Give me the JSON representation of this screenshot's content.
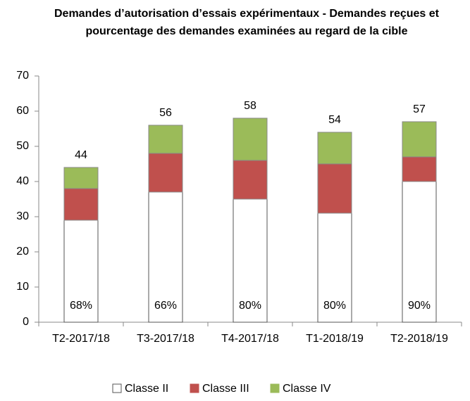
{
  "chart_data": {
    "type": "stacked_bar",
    "title": [
      "Demandes d’autorisation d’essais expérimentaux - Demandes reçues et",
      "pourcentage des demandes examinées au regard de la cible"
    ],
    "categories": [
      "T2-2017/18",
      "T3-2017/18",
      "T4-2017/18",
      "T1-2018/19",
      "T2-2018/19"
    ],
    "series": [
      {
        "name": "Classe II",
        "color": "#ffffff",
        "values": [
          29,
          37,
          35,
          31,
          40
        ]
      },
      {
        "name": "Classe III",
        "color": "#c0504d",
        "values": [
          9,
          11,
          11,
          14,
          7
        ]
      },
      {
        "name": "Classe IV",
        "color": "#9bbb59",
        "values": [
          6,
          8,
          12,
          9,
          10
        ]
      }
    ],
    "totals": [
      44,
      56,
      58,
      54,
      57
    ],
    "percent_examined": {
      "values": [
        68,
        66,
        80,
        80,
        90
      ],
      "value_labels": [
        "68%",
        "66%",
        "80%",
        "80%",
        "90%"
      ]
    },
    "ylim": [
      0,
      70
    ],
    "yticks": [
      0,
      10,
      20,
      30,
      40,
      50,
      60,
      70
    ],
    "grid": false,
    "legend": "bottom"
  }
}
